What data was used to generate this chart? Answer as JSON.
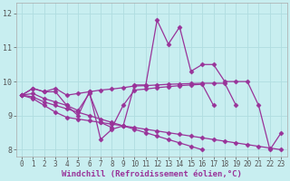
{
  "xlabel": "Windchill (Refroidissement éolien,°C)",
  "background_color": "#c8eef0",
  "grid_color": "#b0dde0",
  "line_color": "#993399",
  "xlim": [
    -0.5,
    23.5
  ],
  "ylim": [
    7.8,
    12.3
  ],
  "xticks": [
    0,
    1,
    2,
    3,
    4,
    5,
    6,
    7,
    8,
    9,
    10,
    11,
    12,
    13,
    14,
    15,
    16,
    17,
    18,
    19,
    20,
    21,
    22,
    23
  ],
  "yticks": [
    8,
    9,
    10,
    11,
    12
  ],
  "lines": [
    [
      9.6,
      9.8,
      9.7,
      9.7,
      9.3,
      9.0,
      9.7,
      8.3,
      8.6,
      8.7,
      9.9,
      9.9,
      11.8,
      11.1,
      11.6,
      10.3,
      10.5,
      10.5,
      10.0,
      10.0,
      10.0,
      9.3,
      8.0,
      8.5
    ],
    [
      9.6,
      9.8,
      9.7,
      9.8,
      9.6,
      9.65,
      9.7,
      9.75,
      9.78,
      9.82,
      9.87,
      9.88,
      9.9,
      9.92,
      9.93,
      9.94,
      9.95,
      9.95,
      9.95,
      9.3,
      null,
      null,
      null,
      null
    ],
    [
      9.6,
      9.65,
      9.5,
      9.4,
      9.3,
      9.15,
      9.65,
      8.8,
      8.65,
      9.3,
      9.75,
      9.78,
      9.82,
      9.85,
      9.88,
      9.9,
      9.92,
      9.3,
      null,
      null,
      null,
      null,
      null,
      null
    ],
    [
      9.6,
      9.55,
      9.4,
      9.3,
      9.2,
      9.1,
      9.0,
      8.9,
      8.8,
      8.7,
      8.6,
      8.5,
      8.4,
      8.3,
      8.2,
      8.1,
      8.0,
      null,
      null,
      null,
      null,
      null,
      null,
      null
    ],
    [
      9.6,
      9.5,
      9.3,
      9.1,
      8.95,
      8.9,
      8.85,
      8.8,
      8.75,
      8.7,
      8.65,
      8.6,
      8.55,
      8.5,
      8.45,
      8.4,
      8.35,
      8.3,
      8.25,
      8.2,
      8.15,
      8.1,
      8.05,
      8.0
    ]
  ],
  "marker": "D",
  "markersize": 2.5,
  "linewidth": 0.9,
  "tick_fontsize": 5.5,
  "xlabel_fontsize": 6.5
}
